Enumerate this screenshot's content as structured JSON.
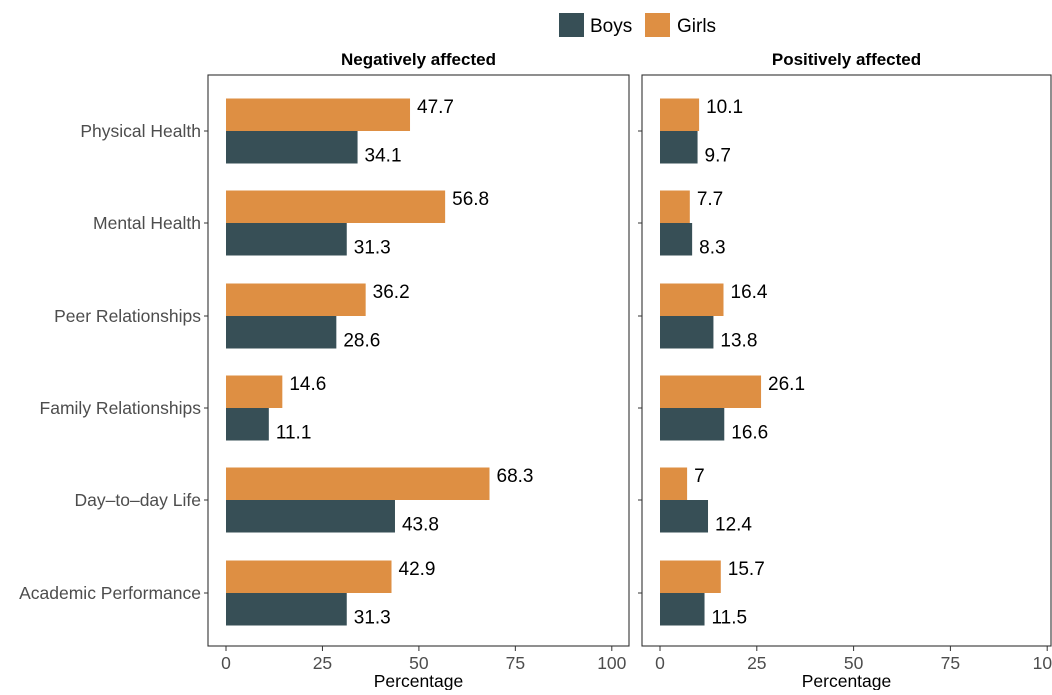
{
  "legend": {
    "items": [
      {
        "label": "Boys",
        "color": "#374f56"
      },
      {
        "label": "Girls",
        "color": "#de8f43"
      }
    ],
    "position": "top-center"
  },
  "chart_data": [
    {
      "type": "bar",
      "orientation": "horizontal",
      "title": "Negatively affected",
      "xlabel": "Percentage",
      "xlim": [
        0,
        100
      ],
      "xticks": [
        0,
        25,
        50,
        75,
        100
      ],
      "categories": [
        "Physical Health",
        "Mental Health",
        "Peer Relationships",
        "Family Relationships",
        "Day–to–day Life",
        "Academic Performance"
      ],
      "series": [
        {
          "name": "Boys",
          "color": "#374f56",
          "values": [
            34.1,
            31.3,
            28.6,
            11.1,
            43.8,
            31.3
          ]
        },
        {
          "name": "Girls",
          "color": "#de8f43",
          "values": [
            47.7,
            56.8,
            36.2,
            14.6,
            68.3,
            42.9
          ]
        }
      ],
      "grid": false
    },
    {
      "type": "bar",
      "orientation": "horizontal",
      "title": "Positively affected",
      "xlabel": "Percentage",
      "xlim": [
        0,
        100
      ],
      "xticks": [
        0,
        25,
        50,
        75,
        100
      ],
      "categories": [
        "Physical Health",
        "Mental Health",
        "Peer Relationships",
        "Family Relationships",
        "Day–to–day Life",
        "Academic Performance"
      ],
      "series": [
        {
          "name": "Boys",
          "color": "#374f56",
          "values": [
            9.7,
            8.3,
            13.8,
            16.6,
            12.4,
            11.5
          ]
        },
        {
          "name": "Girls",
          "color": "#de8f43",
          "values": [
            10.1,
            7.7,
            16.4,
            26.1,
            7.0,
            15.7
          ]
        }
      ],
      "grid": false
    }
  ]
}
